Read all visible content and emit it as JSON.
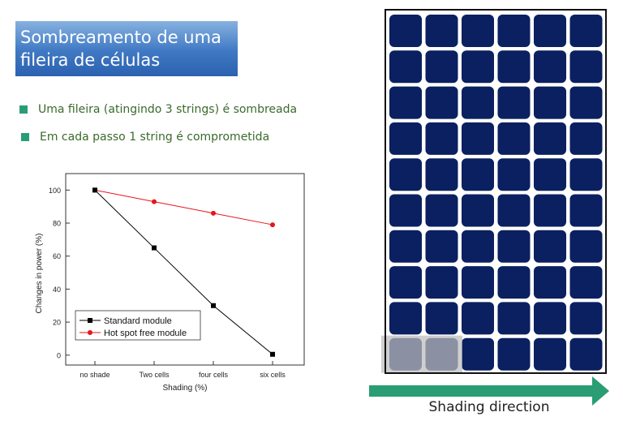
{
  "slide": {
    "title_lines": [
      "Sombreamento de uma",
      "fileira de células"
    ],
    "bullets": [
      "Uma fileira (atingindo 3 strings) é sombreada",
      "Em cada passo 1 string é comprometida"
    ],
    "bullet_color": "#2a9d74"
  },
  "chart_data": {
    "type": "line",
    "categories": [
      "no shade",
      "Two cells",
      "four cells",
      "six cells"
    ],
    "series": [
      {
        "name": "Standard module",
        "values": [
          100,
          65,
          30,
          0.5
        ],
        "color": "#000000",
        "marker": "square"
      },
      {
        "name": "Hot spot free module",
        "values": [
          100,
          93,
          86,
          79
        ],
        "color": "#e8141c",
        "marker": "circle"
      }
    ],
    "xlabel": "Shading (%)",
    "ylabel": "Changes in power (%)",
    "ylim": [
      -6,
      110
    ],
    "yticks": [
      0,
      20,
      40,
      60,
      80,
      100
    ],
    "legend": "bottom-left",
    "grid": false
  },
  "solar_panel": {
    "rows": 10,
    "cols": 6,
    "cell_color": "#0b2060",
    "shaded_row": 10,
    "shaded_cells": 2,
    "caption": "Shading direction",
    "arrow_color": "#2a9d74"
  }
}
